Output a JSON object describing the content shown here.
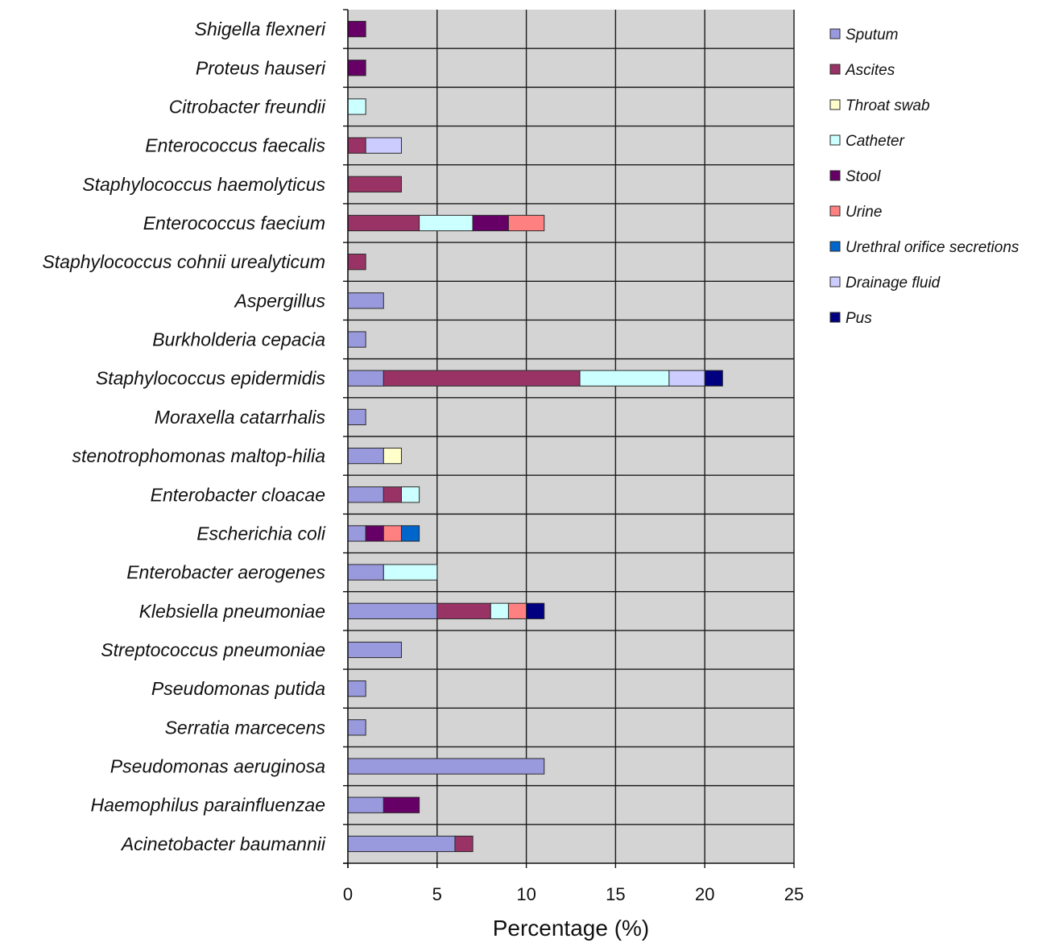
{
  "chart_data": {
    "type": "bar",
    "orientation": "horizontal",
    "stacked": true,
    "title": "",
    "xlabel": "Percentage (%)",
    "ylabel": "",
    "xlim": [
      0,
      25
    ],
    "xticks": [
      0,
      5,
      10,
      15,
      20,
      25
    ],
    "grid": true,
    "legend_position": "right",
    "plot_background": "#d4d4d4",
    "grid_color": "#1a1a1a",
    "categories": [
      "Shigella flexneri",
      "Proteus hauseri",
      "Citrobacter freundii",
      "Enterococcus faecalis",
      "Staphylococcus haemolyticus",
      "Enterococcus faecium",
      "Staphylococcus cohnii urealyticum",
      "Aspergillus",
      "Burkholderia cepacia",
      "Staphylococcus epidermidis",
      "Moraxella catarrhalis",
      "stenotrophomonas maltop-hilia",
      "Enterobacter cloacae",
      "Escherichia coli",
      "Enterobacter aerogenes",
      "Klebsiella pneumoniae",
      "Streptococcus pneumoniae",
      "Pseudomonas putida",
      "Serratia marcecens",
      "Pseudomonas aeruginosa",
      "Haemophilus parainfluenzae",
      "Acinetobacter baumannii"
    ],
    "series": [
      {
        "name": "Sputum",
        "color": "#9999dd",
        "values": [
          0,
          0,
          0,
          0,
          0,
          0,
          0,
          2,
          1,
          2,
          1,
          2,
          2,
          1,
          2,
          5,
          3,
          1,
          1,
          11,
          2,
          6
        ]
      },
      {
        "name": "Ascites",
        "color": "#993366",
        "values": [
          0,
          0,
          0,
          1,
          3,
          4,
          1,
          0,
          0,
          11,
          0,
          0,
          1,
          0,
          0,
          3,
          0,
          0,
          0,
          0,
          0,
          1
        ]
      },
      {
        "name": "Throat swab",
        "color": "#ffffcc",
        "values": [
          0,
          0,
          0,
          0,
          0,
          0,
          0,
          0,
          0,
          0,
          0,
          1,
          0,
          0,
          0,
          0,
          0,
          0,
          0,
          0,
          0,
          0
        ]
      },
      {
        "name": "Catheter",
        "color": "#ccffff",
        "values": [
          0,
          0,
          1,
          0,
          0,
          3,
          0,
          0,
          0,
          5,
          0,
          0,
          1,
          0,
          3,
          1,
          0,
          0,
          0,
          0,
          0,
          0
        ]
      },
      {
        "name": "Stool",
        "color": "#660066",
        "values": [
          1,
          1,
          0,
          0,
          0,
          2,
          0,
          0,
          0,
          0,
          0,
          0,
          0,
          1,
          0,
          0,
          0,
          0,
          0,
          0,
          2,
          0
        ]
      },
      {
        "name": "Urine",
        "color": "#ff8080",
        "values": [
          0,
          0,
          0,
          0,
          0,
          2,
          0,
          0,
          0,
          0,
          0,
          0,
          0,
          1,
          0,
          1,
          0,
          0,
          0,
          0,
          0,
          0
        ]
      },
      {
        "name": "Urethral orifice secretions",
        "color": "#0066cc",
        "values": [
          0,
          0,
          0,
          0,
          0,
          0,
          0,
          0,
          0,
          0,
          0,
          0,
          0,
          1,
          0,
          0,
          0,
          0,
          0,
          0,
          0,
          0
        ]
      },
      {
        "name": "Drainage fluid",
        "color": "#ccccff",
        "values": [
          0,
          0,
          0,
          2,
          0,
          0,
          0,
          0,
          0,
          2,
          0,
          0,
          0,
          0,
          0,
          0,
          0,
          0,
          0,
          0,
          0,
          0
        ]
      },
      {
        "name": "Pus",
        "color": "#000080",
        "values": [
          0,
          0,
          0,
          0,
          0,
          0,
          0,
          0,
          0,
          1,
          0,
          0,
          0,
          0,
          0,
          1,
          0,
          0,
          0,
          0,
          0,
          0
        ]
      }
    ]
  }
}
